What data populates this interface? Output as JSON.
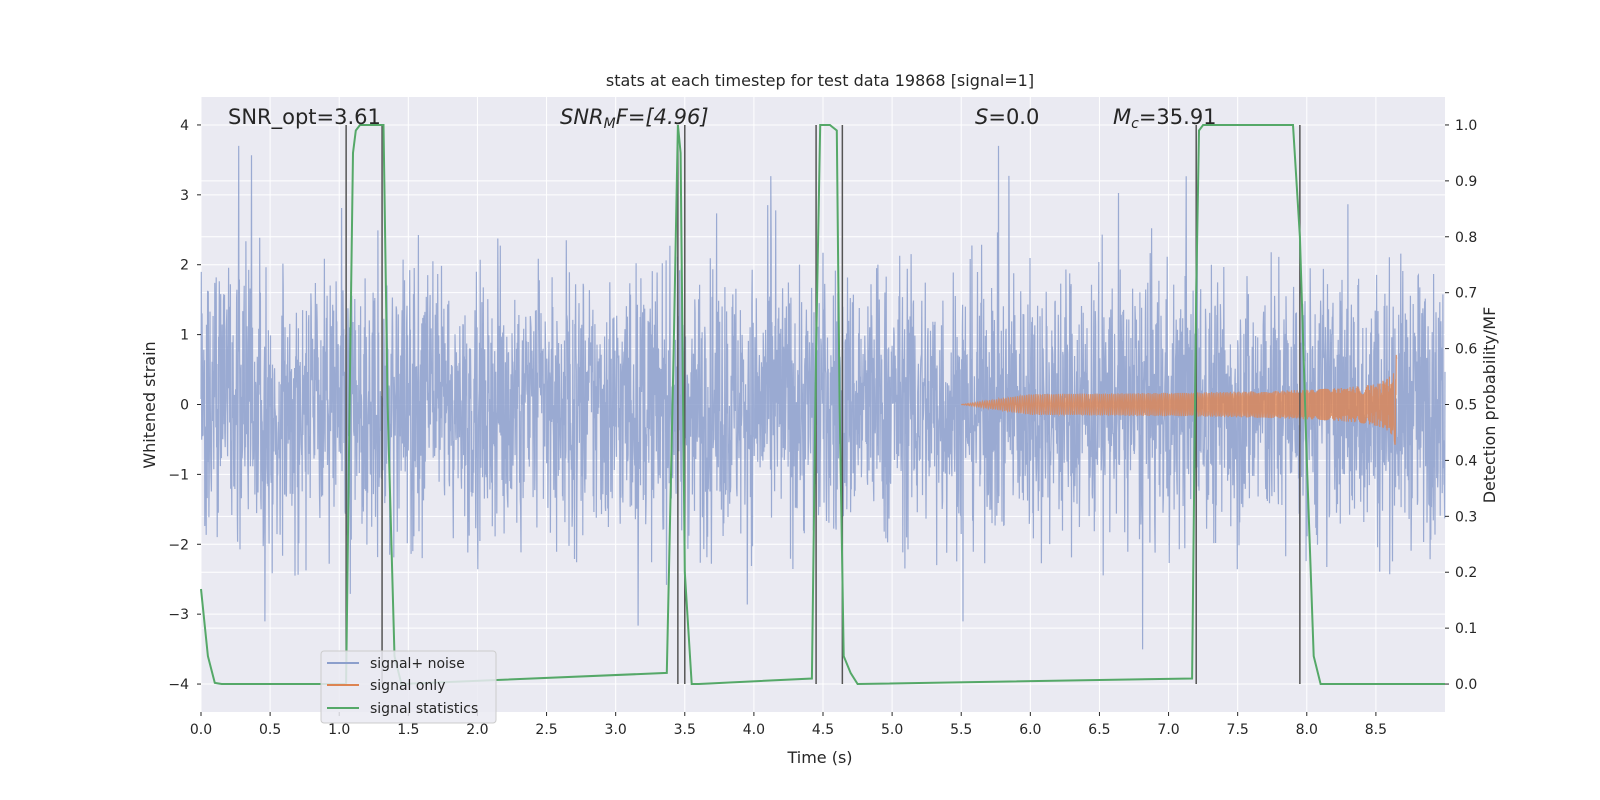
{
  "chart_data": {
    "type": "line",
    "title": "stats at each timestep for test data 19868 [signal=1]",
    "xlabel": "Time (s)",
    "ylabel_left": "Whitened strain",
    "ylabel_right": "Detection probability/MF",
    "xlim": [
      0.0,
      9.0
    ],
    "ylim_left": [
      -4.4,
      4.4
    ],
    "ylim_right": [
      -0.05,
      1.05
    ],
    "x_ticks": [
      "0.0",
      "0.5",
      "1.0",
      "1.5",
      "2.0",
      "2.5",
      "3.0",
      "3.5",
      "4.0",
      "4.5",
      "5.0",
      "5.5",
      "6.0",
      "6.5",
      "7.0",
      "7.5",
      "8.0",
      "8.5"
    ],
    "y_ticks_left": [
      "−4",
      "−3",
      "−2",
      "−1",
      "0",
      "1",
      "2",
      "3",
      "4"
    ],
    "y_ticks_right": [
      "0.0",
      "0.1",
      "0.2",
      "0.3",
      "0.4",
      "0.5",
      "0.6",
      "0.7",
      "0.8",
      "0.9",
      "1.0"
    ],
    "grid": true,
    "legend_placement": "lower-left",
    "annotations": {
      "snr_opt": "SNR_opt=3.61",
      "snr_mf_main": "SNR",
      "snr_mf_sub": "M",
      "snr_mf_rest": "F=[4.96]",
      "s_main": "S",
      "s_rest": "=0.0",
      "mc_main": "M",
      "mc_sub": "c",
      "mc_rest": "=35.91"
    },
    "colors": {
      "background": "#eaeaf2",
      "grid": "#ffffff",
      "noise": "#8c9fcc",
      "signal": "#dd8452",
      "statistics": "#55a868",
      "vlines": "#555555"
    },
    "series": [
      {
        "name": "signal+ noise",
        "kind": "noise",
        "x_range": [
          0.0,
          9.0
        ],
        "amplitude": [
          -3.6,
          3.7
        ]
      },
      {
        "name": "signal only",
        "kind": "chirp",
        "x_range": [
          5.5,
          8.65
        ],
        "peak": 0.9
      },
      {
        "name": "signal statistics",
        "axis": "right",
        "x": [
          0.0,
          0.05,
          0.1,
          0.15,
          1.05,
          1.08,
          1.1,
          1.12,
          1.15,
          1.2,
          1.3,
          1.32,
          1.35,
          1.4,
          1.45,
          3.37,
          3.42,
          3.45,
          3.47,
          3.5,
          3.55,
          3.6,
          4.42,
          4.45,
          4.48,
          4.5,
          4.55,
          4.6,
          4.62,
          4.65,
          4.7,
          4.75,
          7.17,
          7.2,
          7.22,
          7.25,
          7.5,
          7.9,
          7.95,
          8.0,
          8.05,
          8.1,
          9.0
        ],
        "y": [
          0.17,
          0.05,
          0.002,
          0.0,
          0.0,
          0.6,
          0.95,
          0.99,
          1.0,
          1.0,
          1.0,
          1.0,
          0.5,
          0.05,
          0.0,
          0.02,
          0.6,
          1.0,
          0.95,
          0.2,
          0.0,
          0.0,
          0.01,
          0.6,
          1.0,
          1.0,
          1.0,
          0.99,
          0.5,
          0.05,
          0.02,
          0.0,
          0.01,
          0.7,
          0.99,
          1.0,
          1.0,
          1.0,
          0.8,
          0.4,
          0.05,
          0.0,
          0.0
        ]
      }
    ],
    "vertical_lines_x": [
      1.05,
      1.31,
      3.45,
      3.5,
      4.45,
      4.64,
      7.2,
      7.95
    ]
  }
}
